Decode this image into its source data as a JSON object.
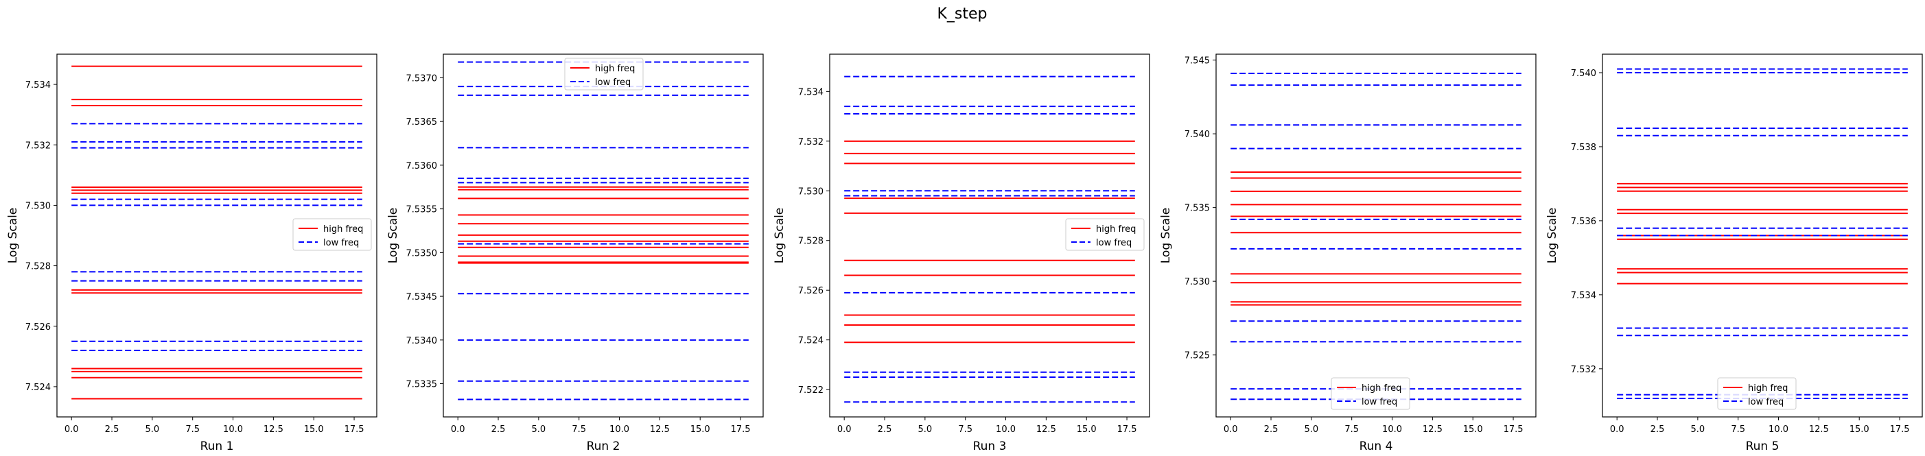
{
  "figure": {
    "title": "K_step",
    "colors": {
      "high": "#ff0000",
      "low": "#0000ff",
      "axes": "#000000",
      "background": "#ffffff"
    }
  },
  "chart_data": [
    {
      "type": "line",
      "xlabel": "Run 1",
      "ylabel": "Log Scale",
      "xlim": [
        -0.9,
        18.9
      ],
      "ylim": [
        7.523,
        7.535
      ],
      "xticks": [
        0.0,
        2.5,
        5.0,
        7.5,
        10.0,
        12.5,
        15.0,
        17.5
      ],
      "xtick_labels": [
        "0.0",
        "2.5",
        "5.0",
        "7.5",
        "10.0",
        "12.5",
        "15.0",
        "17.5"
      ],
      "yticks": [
        7.524,
        7.526,
        7.528,
        7.53,
        7.532,
        7.534
      ],
      "ytick_labels": [
        "7.524",
        "7.526",
        "7.528",
        "7.530",
        "7.532",
        "7.534"
      ],
      "grid": false,
      "legend": {
        "position": "center-right",
        "entries": [
          "high freq",
          "low freq"
        ]
      },
      "series": [
        {
          "name": "high freq",
          "style": "solid",
          "color": "#ff0000",
          "x_start": 0,
          "x_end": 18,
          "values": [
            7.5346,
            7.5335,
            7.5333,
            7.5306,
            7.5305,
            7.5304,
            7.5272,
            7.5271,
            7.5246,
            7.5245,
            7.5243,
            7.5236
          ]
        },
        {
          "name": "low freq",
          "style": "dashed",
          "color": "#0000ff",
          "x_start": 0,
          "x_end": 18,
          "values": [
            7.5327,
            7.5321,
            7.5319,
            7.5302,
            7.53,
            7.5278,
            7.5275,
            7.5255,
            7.5252
          ]
        }
      ]
    },
    {
      "type": "line",
      "xlabel": "Run 2",
      "ylabel": "Log Scale",
      "xlim": [
        -0.9,
        18.9
      ],
      "ylim": [
        7.53312,
        7.53727
      ],
      "xticks": [
        0.0,
        2.5,
        5.0,
        7.5,
        10.0,
        12.5,
        15.0,
        17.5
      ],
      "xtick_labels": [
        "0.0",
        "2.5",
        "5.0",
        "7.5",
        "10.0",
        "12.5",
        "15.0",
        "17.5"
      ],
      "yticks": [
        7.5335,
        7.534,
        7.5345,
        7.535,
        7.5355,
        7.536,
        7.5365,
        7.537
      ],
      "ytick_labels": [
        "7.5335",
        "7.5340",
        "7.5345",
        "7.5350",
        "7.5355",
        "7.5360",
        "7.5365",
        "7.5370"
      ],
      "grid": false,
      "legend": {
        "position": "top-center",
        "entries": [
          "high freq",
          "low freq"
        ]
      },
      "series": [
        {
          "name": "high freq",
          "style": "solid",
          "color": "#ff0000",
          "x_start": 0,
          "x_end": 18,
          "values": [
            7.53575,
            7.53572,
            7.53562,
            7.53543,
            7.53533,
            7.5352,
            7.53513,
            7.53506,
            7.53496,
            7.53489,
            7.53488
          ]
        },
        {
          "name": "low freq",
          "style": "dashed",
          "color": "#0000ff",
          "x_start": 0,
          "x_end": 18,
          "values": [
            7.53718,
            7.5369,
            7.5368,
            7.5362,
            7.53585,
            7.5358,
            7.5351,
            7.53453,
            7.534,
            7.53353,
            7.53332
          ]
        }
      ]
    },
    {
      "type": "line",
      "xlabel": "Run 3",
      "ylabel": "Log Scale",
      "xlim": [
        -0.9,
        18.9
      ],
      "ylim": [
        7.5209,
        7.5355
      ],
      "xticks": [
        0.0,
        2.5,
        5.0,
        7.5,
        10.0,
        12.5,
        15.0,
        17.5
      ],
      "xtick_labels": [
        "0.0",
        "2.5",
        "5.0",
        "7.5",
        "10.0",
        "12.5",
        "15.0",
        "17.5"
      ],
      "yticks": [
        7.522,
        7.524,
        7.526,
        7.528,
        7.53,
        7.532,
        7.534
      ],
      "ytick_labels": [
        "7.522",
        "7.524",
        "7.526",
        "7.528",
        "7.530",
        "7.532",
        "7.534"
      ],
      "grid": false,
      "legend": {
        "position": "center-right",
        "entries": [
          "high freq",
          "low freq"
        ]
      },
      "series": [
        {
          "name": "high freq",
          "style": "solid",
          "color": "#ff0000",
          "x_start": 0,
          "x_end": 18,
          "values": [
            7.532,
            7.5315,
            7.5311,
            7.5297,
            7.5291,
            7.5272,
            7.5266,
            7.525,
            7.5246,
            7.5239
          ]
        },
        {
          "name": "low freq",
          "style": "dashed",
          "color": "#0000ff",
          "x_start": 0,
          "x_end": 18,
          "values": [
            7.5346,
            7.5334,
            7.5331,
            7.53,
            7.5298,
            7.5259,
            7.5227,
            7.5225,
            7.5215
          ]
        }
      ]
    },
    {
      "type": "line",
      "xlabel": "Run 4",
      "ylabel": "Log Scale",
      "xlim": [
        -0.9,
        18.9
      ],
      "ylim": [
        7.5208,
        7.5454
      ],
      "xticks": [
        0.0,
        2.5,
        5.0,
        7.5,
        10.0,
        12.5,
        15.0,
        17.5
      ],
      "xtick_labels": [
        "0.0",
        "2.5",
        "5.0",
        "7.5",
        "10.0",
        "12.5",
        "15.0",
        "17.5"
      ],
      "yticks": [
        7.525,
        7.53,
        7.535,
        7.54,
        7.545
      ],
      "ytick_labels": [
        "7.525",
        "7.530",
        "7.535",
        "7.540",
        "7.545"
      ],
      "grid": false,
      "legend": {
        "position": "bottom-center",
        "entries": [
          "high freq",
          "low freq"
        ]
      },
      "series": [
        {
          "name": "high freq",
          "style": "solid",
          "color": "#ff0000",
          "x_start": 0,
          "x_end": 18,
          "values": [
            7.5374,
            7.537,
            7.5361,
            7.5352,
            7.5344,
            7.5333,
            7.5305,
            7.5299,
            7.5286,
            7.5284
          ]
        },
        {
          "name": "low freq",
          "style": "dashed",
          "color": "#0000ff",
          "x_start": 0,
          "x_end": 18,
          "values": [
            7.5441,
            7.5433,
            7.5406,
            7.539,
            7.5342,
            7.5322,
            7.5273,
            7.5259,
            7.5227,
            7.522
          ]
        }
      ]
    },
    {
      "type": "line",
      "xlabel": "Run 5",
      "ylabel": "Log Scale",
      "xlim": [
        -0.9,
        18.9
      ],
      "ylim": [
        7.5307,
        7.5405
      ],
      "xticks": [
        0.0,
        2.5,
        5.0,
        7.5,
        10.0,
        12.5,
        15.0,
        17.5
      ],
      "xtick_labels": [
        "0.0",
        "2.5",
        "5.0",
        "7.5",
        "10.0",
        "12.5",
        "15.0",
        "17.5"
      ],
      "yticks": [
        7.532,
        7.534,
        7.536,
        7.538,
        7.54
      ],
      "ytick_labels": [
        "7.532",
        "7.534",
        "7.536",
        "7.538",
        "7.540"
      ],
      "grid": false,
      "legend": {
        "position": "bottom-center",
        "entries": [
          "high freq",
          "low freq"
        ]
      },
      "series": [
        {
          "name": "high freq",
          "style": "solid",
          "color": "#ff0000",
          "x_start": 0,
          "x_end": 18,
          "values": [
            7.537,
            7.5369,
            7.5368,
            7.5363,
            7.5362,
            7.5356,
            7.5355,
            7.5347,
            7.5346,
            7.5343
          ]
        },
        {
          "name": "low freq",
          "style": "dashed",
          "color": "#0000ff",
          "x_start": 0,
          "x_end": 18,
          "values": [
            7.5401,
            7.54,
            7.5385,
            7.5383,
            7.5358,
            7.5356,
            7.5331,
            7.5329,
            7.5313,
            7.5312
          ]
        }
      ]
    }
  ]
}
